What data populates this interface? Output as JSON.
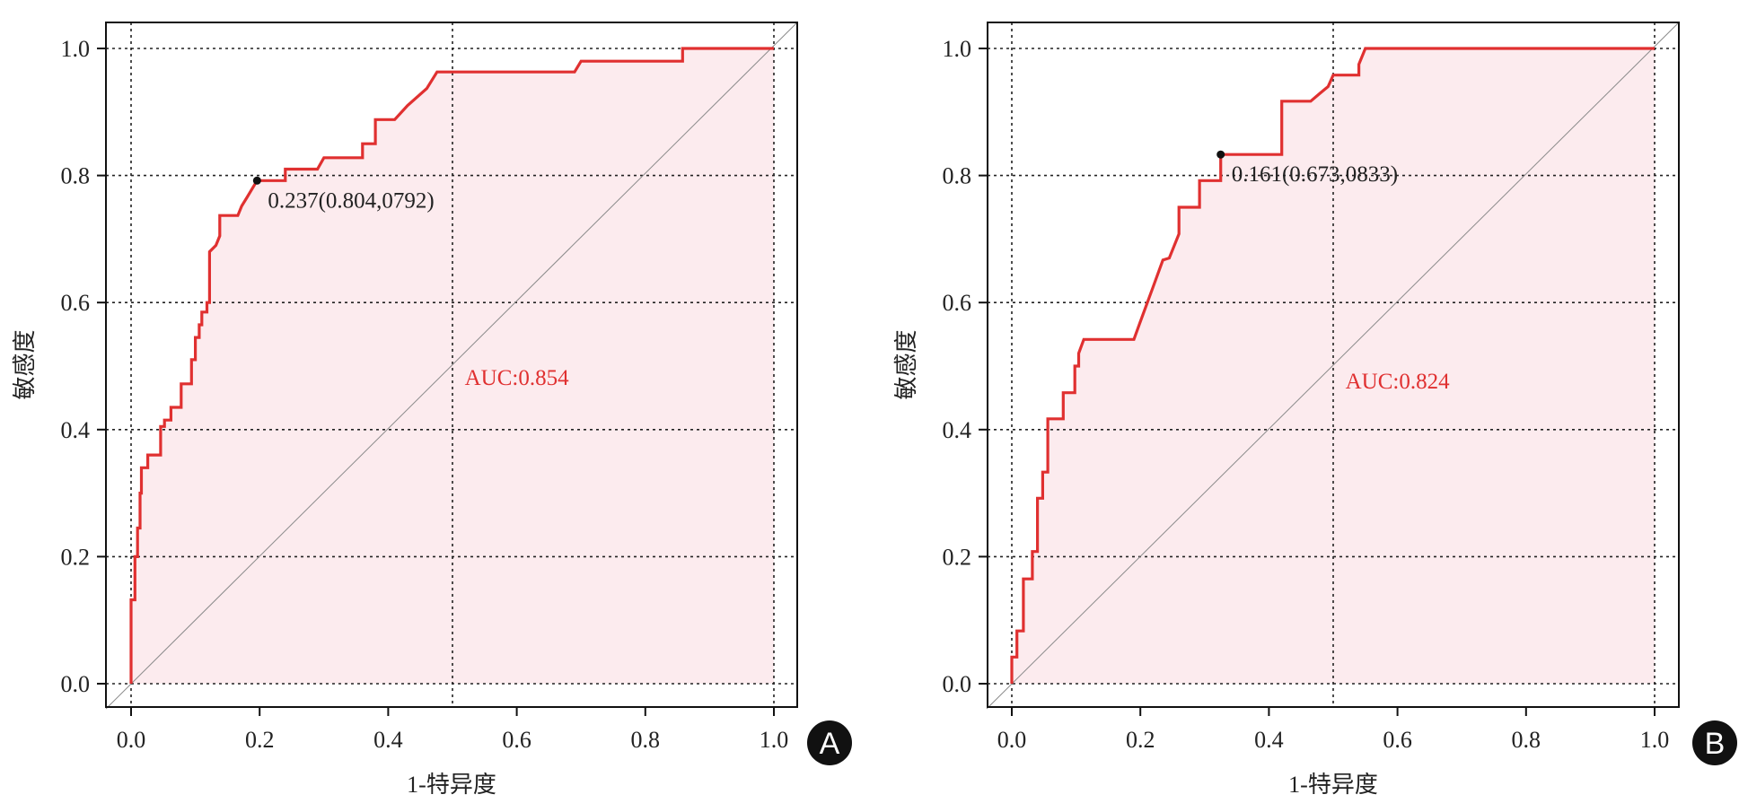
{
  "chart_data": [
    {
      "type": "line",
      "panel_label": "A",
      "xlabel": "1-特异度",
      "ylabel": "敏感度",
      "xlim": [
        0,
        1
      ],
      "ylim": [
        0,
        1
      ],
      "x_ticks": [
        "0.0",
        "0.2",
        "0.4",
        "0.6",
        "0.8",
        "1.0"
      ],
      "y_ticks": [
        "0.0",
        "0.2",
        "0.4",
        "0.6",
        "0.8",
        "1.0"
      ],
      "grid": "dotted reference lines at x=0, 0.5, 1 and y=0, 0.2, 0.4, 0.6, 0.8, 1",
      "curve_color": "#e03030",
      "fill_color": "#fcebee",
      "auc_label": "AUC:0.854",
      "auc_label_pos": [
        0.6,
        0.47
      ],
      "cutoff_point": [
        0.196,
        0.792
      ],
      "cutoff_label": "0.237(0.804,0792)",
      "roc": [
        [
          0,
          0
        ],
        [
          0,
          0.132
        ],
        [
          0.006,
          0.132
        ],
        [
          0.006,
          0.2
        ],
        [
          0.01,
          0.2
        ],
        [
          0.01,
          0.245
        ],
        [
          0.014,
          0.245
        ],
        [
          0.014,
          0.3
        ],
        [
          0.016,
          0.3
        ],
        [
          0.016,
          0.34
        ],
        [
          0.026,
          0.34
        ],
        [
          0.026,
          0.36
        ],
        [
          0.046,
          0.36
        ],
        [
          0.046,
          0.405
        ],
        [
          0.052,
          0.405
        ],
        [
          0.052,
          0.415
        ],
        [
          0.062,
          0.415
        ],
        [
          0.062,
          0.435
        ],
        [
          0.078,
          0.435
        ],
        [
          0.078,
          0.472
        ],
        [
          0.094,
          0.472
        ],
        [
          0.094,
          0.51
        ],
        [
          0.1,
          0.51
        ],
        [
          0.1,
          0.545
        ],
        [
          0.106,
          0.545
        ],
        [
          0.106,
          0.565
        ],
        [
          0.11,
          0.565
        ],
        [
          0.11,
          0.585
        ],
        [
          0.118,
          0.585
        ],
        [
          0.118,
          0.6
        ],
        [
          0.122,
          0.6
        ],
        [
          0.122,
          0.68
        ],
        [
          0.132,
          0.69
        ],
        [
          0.138,
          0.705
        ],
        [
          0.138,
          0.737
        ],
        [
          0.166,
          0.737
        ],
        [
          0.172,
          0.752
        ],
        [
          0.18,
          0.765
        ],
        [
          0.196,
          0.792
        ],
        [
          0.24,
          0.792
        ],
        [
          0.24,
          0.81
        ],
        [
          0.29,
          0.81
        ],
        [
          0.3,
          0.828
        ],
        [
          0.36,
          0.828
        ],
        [
          0.36,
          0.85
        ],
        [
          0.38,
          0.85
        ],
        [
          0.38,
          0.888
        ],
        [
          0.41,
          0.888
        ],
        [
          0.43,
          0.91
        ],
        [
          0.46,
          0.937
        ],
        [
          0.476,
          0.963
        ],
        [
          0.69,
          0.963
        ],
        [
          0.7,
          0.98
        ],
        [
          0.858,
          0.98
        ],
        [
          0.858,
          1
        ],
        [
          1,
          1
        ]
      ]
    },
    {
      "type": "line",
      "panel_label": "B",
      "xlabel": "1-特异度",
      "ylabel": "敏感度",
      "xlim": [
        0,
        1
      ],
      "ylim": [
        0,
        1
      ],
      "x_ticks": [
        "0.0",
        "0.2",
        "0.4",
        "0.6",
        "0.8",
        "1.0"
      ],
      "y_ticks": [
        "0.0",
        "0.2",
        "0.4",
        "0.6",
        "0.8",
        "1.0"
      ],
      "grid": "dotted reference lines at x=0, 0.5, 1 and y=0, 0.2, 0.4, 0.6, 0.8, 1",
      "curve_color": "#e03030",
      "fill_color": "#fcebee",
      "auc_label": "AUC:0.824",
      "auc_label_pos": [
        0.6,
        0.465
      ],
      "cutoff_point": [
        0.325,
        0.833
      ],
      "cutoff_label": "0.161(0.673,0833)",
      "roc": [
        [
          0,
          0
        ],
        [
          0,
          0.042
        ],
        [
          0.008,
          0.042
        ],
        [
          0.008,
          0.083
        ],
        [
          0.018,
          0.083
        ],
        [
          0.018,
          0.165
        ],
        [
          0.032,
          0.165
        ],
        [
          0.032,
          0.208
        ],
        [
          0.04,
          0.208
        ],
        [
          0.04,
          0.292
        ],
        [
          0.048,
          0.292
        ],
        [
          0.048,
          0.333
        ],
        [
          0.056,
          0.333
        ],
        [
          0.056,
          0.417
        ],
        [
          0.08,
          0.417
        ],
        [
          0.08,
          0.458
        ],
        [
          0.098,
          0.458
        ],
        [
          0.098,
          0.5
        ],
        [
          0.104,
          0.5
        ],
        [
          0.104,
          0.52
        ],
        [
          0.112,
          0.542
        ],
        [
          0.19,
          0.542
        ],
        [
          0.2,
          0.57
        ],
        [
          0.22,
          0.625
        ],
        [
          0.235,
          0.667
        ],
        [
          0.245,
          0.67
        ],
        [
          0.26,
          0.708
        ],
        [
          0.26,
          0.75
        ],
        [
          0.292,
          0.75
        ],
        [
          0.292,
          0.792
        ],
        [
          0.325,
          0.792
        ],
        [
          0.325,
          0.833
        ],
        [
          0.42,
          0.833
        ],
        [
          0.42,
          0.917
        ],
        [
          0.465,
          0.917
        ],
        [
          0.48,
          0.93
        ],
        [
          0.492,
          0.94
        ],
        [
          0.5,
          0.958
        ],
        [
          0.54,
          0.958
        ],
        [
          0.54,
          0.975
        ],
        [
          0.55,
          1
        ],
        [
          1,
          1
        ]
      ]
    }
  ]
}
